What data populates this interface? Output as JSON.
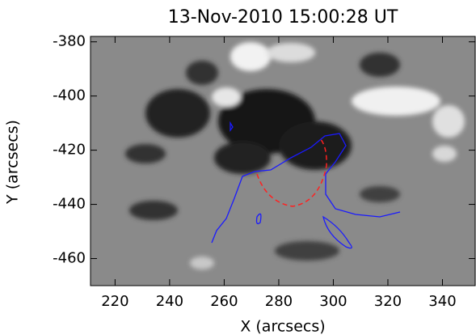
{
  "chart_data": {
    "type": "image",
    "title": "13-Nov-2010 15:00:28 UT",
    "x_label": "X (arcsecs)",
    "y_label": "Y (arcsecs)",
    "xlim": [
      211,
      352
    ],
    "ylim": [
      -470,
      -378
    ],
    "xticks": [
      220,
      240,
      260,
      280,
      300,
      320,
      340
    ],
    "yticks": [
      -460,
      -440,
      -420,
      -400,
      -380
    ]
  }
}
